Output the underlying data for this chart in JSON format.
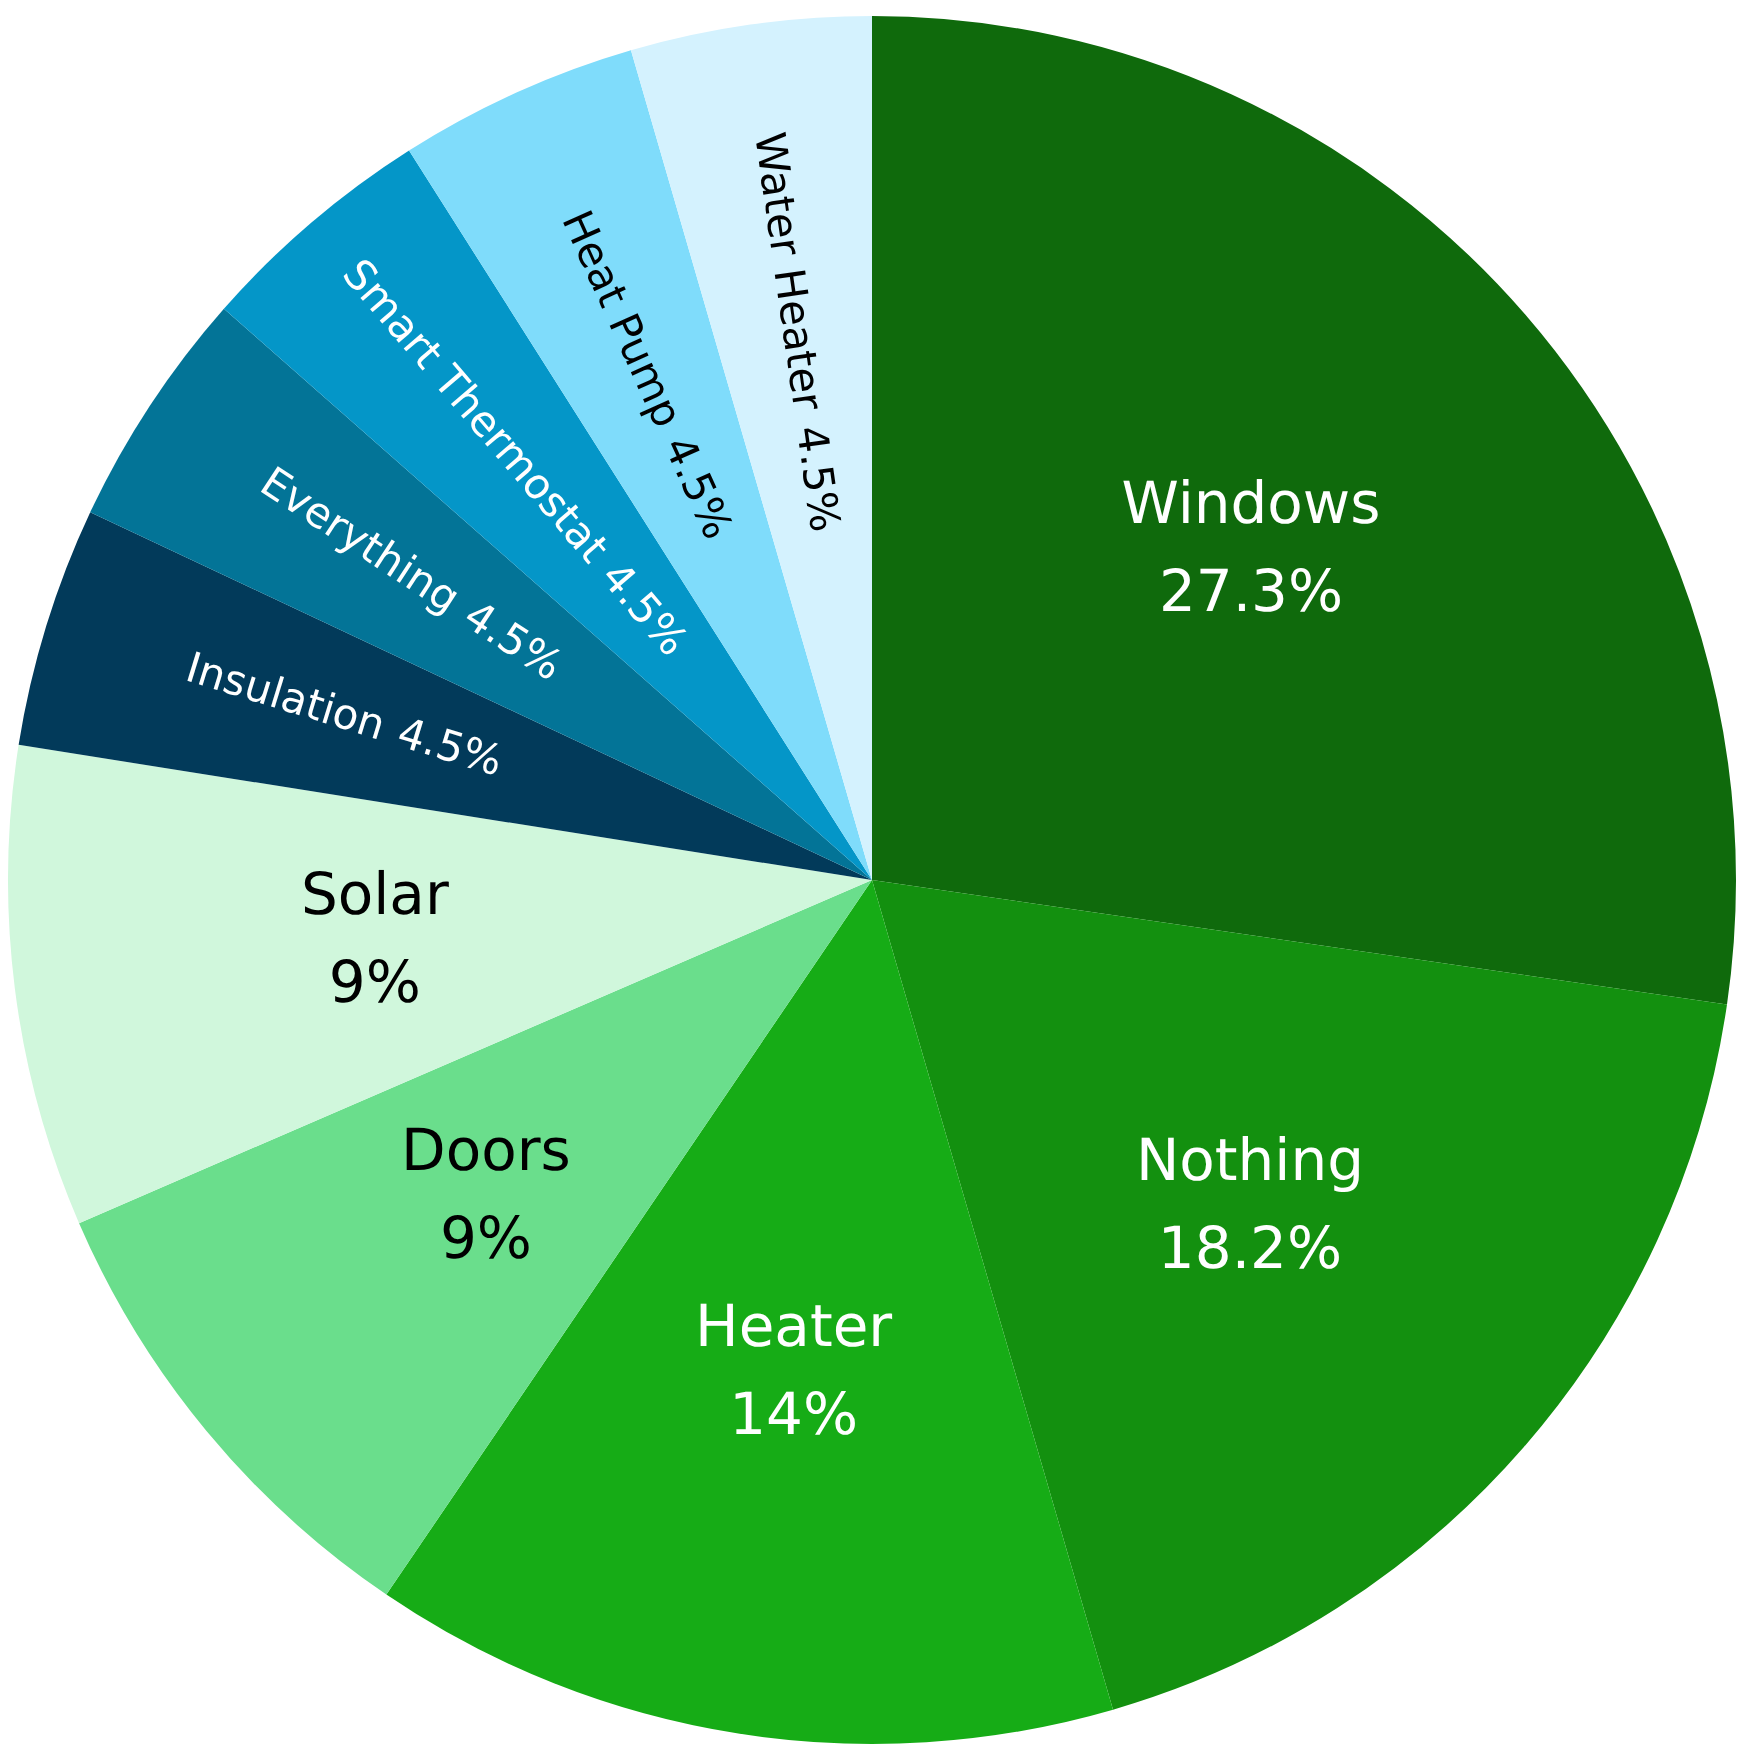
{
  "chart_data": {
    "type": "pie",
    "categories": [
      "Windows",
      "Nothing",
      "Heater",
      "Doors",
      "Solar",
      "Insulation",
      "Everything",
      "Smart Thermostat",
      "Heat Pump",
      "Water Heater"
    ],
    "values": [
      27.3,
      18.2,
      14,
      9,
      9,
      4.5,
      4.5,
      4.5,
      4.5,
      4.5
    ],
    "colors": [
      "#0f6a0c",
      "#13900f",
      "#16ac16",
      "#6ade8c",
      "#d0f7dc",
      "#023a5a",
      "#037497",
      "#0496c8",
      "#7fdcfb",
      "#d4f2fe"
    ],
    "value_labels": [
      "27.3%",
      "18.2%",
      "14%",
      "9%",
      "9%",
      "4.5%",
      "4.5%",
      "4.5%",
      "4.5%",
      "4.5%"
    ],
    "legend": false
  }
}
